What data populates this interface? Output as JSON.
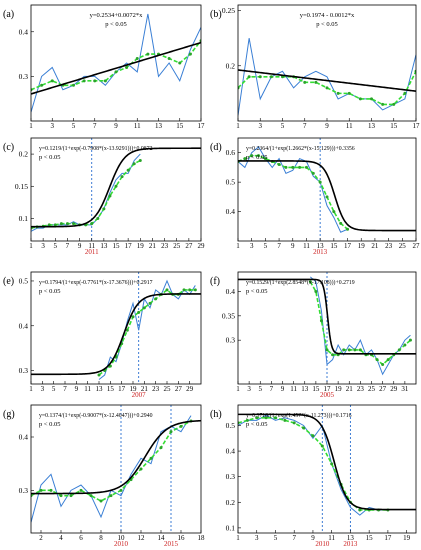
{
  "colors": {
    "observed": "#3a7fd5",
    "smoothed": "#33dd33",
    "smoothed_marker": "#2aa52a",
    "fit": "#000000",
    "guide": "#2a6fd0",
    "year": "#cc2222"
  },
  "chart_data": [
    {
      "label": "(a)",
      "type": "line",
      "x": [
        1,
        2,
        3,
        4,
        5,
        6,
        7,
        8,
        9,
        10,
        11,
        12,
        13,
        14,
        15,
        16,
        17
      ],
      "xticks": [
        1,
        3,
        5,
        7,
        9,
        11,
        13,
        15,
        17
      ],
      "xlim": [
        1,
        17
      ],
      "yticks": [
        0.3,
        0.4
      ],
      "ylim": [
        0.2,
        0.46
      ],
      "series": [
        {
          "values": [
            0.22,
            0.3,
            0.32,
            0.27,
            0.28,
            0.3,
            0.3,
            0.28,
            0.31,
            0.33,
            0.31,
            0.44,
            0.3,
            0.33,
            0.29,
            0.36,
            0.41
          ]
        },
        {
          "values": [
            0.27,
            0.28,
            0.29,
            0.28,
            0.28,
            0.29,
            0.29,
            0.29,
            0.31,
            0.32,
            0.34,
            0.35,
            0.35,
            0.34,
            0.33,
            0.35,
            0.38
          ]
        }
      ],
      "fit": {
        "model": "linear",
        "a": 0.2534,
        "b": 0.0072
      },
      "equation": "y=0.2534+0.0072*x",
      "pvalue": "p < 0.05",
      "markers": [],
      "marker_labels": []
    },
    {
      "label": "(b)",
      "type": "line",
      "x": [
        1,
        2,
        3,
        4,
        5,
        6,
        7,
        8,
        9,
        10,
        11,
        12,
        13,
        14,
        15,
        16,
        17
      ],
      "xticks": [
        1,
        3,
        5,
        7,
        9,
        11,
        13,
        15,
        17
      ],
      "xlim": [
        1,
        17
      ],
      "yticks": [
        0.2,
        0.25
      ],
      "ylim": [
        0.15,
        0.255
      ],
      "series": [
        {
          "values": [
            0.155,
            0.225,
            0.17,
            0.19,
            0.195,
            0.18,
            0.19,
            0.195,
            0.19,
            0.17,
            0.175,
            0.17,
            0.17,
            0.16,
            0.165,
            0.17,
            0.21
          ]
        },
        {
          "values": [
            0.18,
            0.19,
            0.19,
            0.19,
            0.19,
            0.19,
            0.185,
            0.185,
            0.18,
            0.175,
            0.175,
            0.17,
            0.17,
            0.165,
            0.165,
            0.175,
            0.195
          ]
        }
      ],
      "fit": {
        "model": "linear",
        "a": 0.1974,
        "b": -0.0012
      },
      "equation": "y=0.1974 - 0.0012*x",
      "pvalue": "p < 0.05",
      "markers": [],
      "marker_labels": []
    },
    {
      "label": "(c)",
      "type": "line",
      "x": [
        1,
        2,
        3,
        4,
        5,
        6,
        7,
        8,
        9,
        10,
        11,
        12,
        13,
        14,
        15,
        16,
        17,
        18,
        19
      ],
      "xticks": [
        1,
        3,
        5,
        7,
        9,
        11,
        13,
        15,
        17,
        19,
        21,
        23,
        25,
        27,
        29
      ],
      "xlim": [
        1,
        29
      ],
      "yticks": [
        0.1,
        0.15,
        0.2
      ],
      "ylim": [
        0.065,
        0.225
      ],
      "series": [
        {
          "values": [
            0.08,
            0.085,
            0.085,
            0.09,
            0.09,
            0.09,
            0.09,
            0.095,
            0.09,
            0.09,
            0.09,
            0.1,
            0.115,
            0.14,
            0.16,
            0.17,
            0.17,
            0.19,
            0.2
          ]
        },
        {
          "values": [
            0.085,
            0.087,
            0.088,
            0.09,
            0.09,
            0.092,
            0.092,
            0.092,
            0.09,
            0.09,
            0.092,
            0.1,
            0.115,
            0.135,
            0.15,
            0.165,
            0.175,
            0.185,
            0.19
          ]
        }
      ],
      "fit": {
        "model": "logistic",
        "A": 0.1219,
        "k": 0.7908,
        "x0": 13.9291,
        "c": 0.0872
      },
      "equation": "y=0.1219/(1+exp(-0.7908*(x-13.9291)))+0.0872",
      "pvalue": "p < 0.05",
      "markers": [
        11
      ],
      "marker_labels": [
        "2011"
      ]
    },
    {
      "label": "(d)",
      "type": "line",
      "x": [
        1,
        2,
        3,
        4,
        5,
        6,
        7,
        8,
        9,
        10,
        11,
        12,
        13,
        14,
        15,
        16,
        17
      ],
      "xticks": [
        1,
        3,
        5,
        7,
        9,
        11,
        13,
        15,
        17,
        19,
        21,
        23,
        25,
        27
      ],
      "xlim": [
        1,
        27
      ],
      "yticks": [
        0.4,
        0.5,
        0.6
      ],
      "ylim": [
        0.3,
        0.65
      ],
      "series": [
        {
          "values": [
            0.57,
            0.55,
            0.6,
            0.62,
            0.58,
            0.55,
            0.58,
            0.53,
            0.54,
            0.58,
            0.57,
            0.52,
            0.5,
            0.42,
            0.38,
            0.33,
            0.34
          ]
        },
        {
          "values": [
            0.57,
            0.58,
            0.59,
            0.59,
            0.58,
            0.57,
            0.56,
            0.55,
            0.55,
            0.55,
            0.55,
            0.53,
            0.5,
            0.45,
            0.4,
            0.36,
            0.34
          ]
        }
      ],
      "fit": {
        "model": "logistic",
        "A": 0.2364,
        "k": -1.2662,
        "x0": 15.129,
        "c": 0.3356
      },
      "equation": "y=0.2364/(1+exp(1.2662*(x-15.129)))+0.3356",
      "pvalue": "p < 0.05",
      "markers": [
        13
      ],
      "marker_labels": [
        "2013"
      ]
    },
    {
      "label": "(e)",
      "type": "line",
      "x": [
        13,
        14,
        15,
        16,
        17,
        18,
        19,
        20,
        21,
        22,
        23,
        24,
        25,
        26,
        27,
        28,
        29,
        30
      ],
      "xticks": [
        1,
        3,
        5,
        7,
        9,
        11,
        13,
        15,
        17,
        19,
        21,
        23,
        25,
        27,
        29
      ],
      "xlim": [
        1,
        31
      ],
      "yticks": [
        0.3,
        0.4,
        0.5
      ],
      "ylim": [
        0.27,
        0.52
      ],
      "series": [
        {
          "values": [
            0.28,
            0.29,
            0.33,
            0.32,
            0.36,
            0.41,
            0.45,
            0.39,
            0.46,
            0.44,
            0.48,
            0.47,
            0.5,
            0.47,
            0.46,
            0.48,
            0.47,
            0.49
          ]
        },
        {
          "values": [
            0.29,
            0.3,
            0.31,
            0.33,
            0.36,
            0.39,
            0.42,
            0.43,
            0.44,
            0.45,
            0.46,
            0.47,
            0.48,
            0.47,
            0.47,
            0.48,
            0.48,
            0.48
          ]
        }
      ],
      "fit": {
        "model": "logistic",
        "A": 0.1794,
        "k": 0.7761,
        "x0": 17.3676,
        "c": 0.2917
      },
      "equation": "y=0.1794/(1+exp(-0.7761*(x-17.3676)))+0.2917",
      "pvalue": "p < 0.05",
      "markers": [
        20
      ],
      "marker_labels": [
        "2007"
      ]
    },
    {
      "label": "(f)",
      "type": "line",
      "x": [
        14,
        15,
        16,
        17,
        18,
        19,
        20,
        21,
        22,
        23,
        24,
        25,
        26,
        27,
        28,
        29,
        30,
        31,
        32
      ],
      "xticks": [
        1,
        3,
        5,
        7,
        9,
        11,
        13,
        15,
        17,
        19,
        21,
        23,
        25,
        27,
        29,
        31
      ],
      "xlim": [
        1,
        33
      ],
      "yticks": [
        0.3,
        0.35,
        0.4
      ],
      "ylim": [
        0.21,
        0.44
      ],
      "series": [
        {
          "values": [
            0.43,
            0.42,
            0.36,
            0.25,
            0.26,
            0.29,
            0.27,
            0.29,
            0.28,
            0.3,
            0.27,
            0.28,
            0.26,
            0.23,
            0.25,
            0.27,
            0.28,
            0.3,
            0.31
          ]
        },
        {
          "values": [
            0.42,
            0.4,
            0.34,
            0.28,
            0.27,
            0.27,
            0.28,
            0.28,
            0.28,
            0.28,
            0.27,
            0.27,
            0.26,
            0.25,
            0.26,
            0.27,
            0.28,
            0.29,
            0.3
          ]
        }
      ],
      "fit": {
        "model": "logistic",
        "A": 0.1529,
        "k": -2.8548,
        "x0": 17.108,
        "c": 0.2719
      },
      "equation": "y=0.1529/(1+exp(2.8548*(x-17.108)))+0.2719",
      "pvalue": "p < 0.05",
      "markers": [
        17
      ],
      "marker_labels": [
        "2005"
      ]
    },
    {
      "label": "(g)",
      "type": "line",
      "x": [
        1,
        2,
        3,
        4,
        5,
        6,
        7,
        8,
        9,
        10,
        11,
        12,
        13,
        14,
        15,
        16,
        17
      ],
      "xticks": [
        2,
        4,
        6,
        8,
        10,
        12,
        14,
        16,
        18
      ],
      "xlim": [
        1,
        18
      ],
      "yticks": [
        0.3,
        0.4
      ],
      "ylim": [
        0.22,
        0.46
      ],
      "series": [
        {
          "values": [
            0.24,
            0.31,
            0.33,
            0.27,
            0.3,
            0.31,
            0.29,
            0.25,
            0.3,
            0.29,
            0.33,
            0.36,
            0.35,
            0.41,
            0.42,
            0.41,
            0.44
          ]
        },
        {
          "values": [
            0.29,
            0.3,
            0.3,
            0.29,
            0.29,
            0.3,
            0.29,
            0.28,
            0.29,
            0.3,
            0.32,
            0.34,
            0.36,
            0.38,
            0.41,
            0.42,
            0.43
          ]
        }
      ],
      "fit": {
        "model": "logistic",
        "A": 0.1374,
        "k": 0.9007,
        "x0": 12.4047,
        "c": 0.294
      },
      "equation": "y=0.1374/(1+exp(-0.9007*(x-12.4047)))+0.2940",
      "pvalue": "p < 0.05",
      "markers": [
        10,
        15
      ],
      "marker_labels": [
        "2010",
        "2015"
      ]
    },
    {
      "label": "(h)",
      "type": "line",
      "x": [
        1,
        2,
        3,
        4,
        5,
        6,
        7,
        8,
        9,
        10,
        11,
        12,
        13,
        14,
        15,
        16,
        17
      ],
      "xticks": [
        1,
        3,
        5,
        7,
        9,
        11,
        13,
        15,
        17,
        19
      ],
      "xlim": [
        1,
        20
      ],
      "yticks": [
        0.1,
        0.2,
        0.3,
        0.4,
        0.5
      ],
      "ylim": [
        0.08,
        0.58
      ],
      "series": [
        {
          "values": [
            0.5,
            0.52,
            0.52,
            0.54,
            0.52,
            0.53,
            0.52,
            0.5,
            0.45,
            0.5,
            0.35,
            0.25,
            0.18,
            0.15,
            0.18,
            0.17,
            0.17
          ]
        },
        {
          "values": [
            0.51,
            0.52,
            0.53,
            0.53,
            0.53,
            0.52,
            0.51,
            0.49,
            0.46,
            0.42,
            0.35,
            0.27,
            0.2,
            0.17,
            0.17,
            0.17,
            0.17
          ]
        }
      ],
      "fit": {
        "model": "logistic",
        "A": 0.3718,
        "k": -1.457,
        "x0": 11.273,
        "c": 0.1716
      },
      "equation": "y=0.3718/(1+exp(1.457*(x-11.273)))+0.1716",
      "pvalue": "p < 0.05",
      "markers": [
        10,
        13
      ],
      "marker_labels": [
        "2010",
        "2013"
      ]
    }
  ]
}
